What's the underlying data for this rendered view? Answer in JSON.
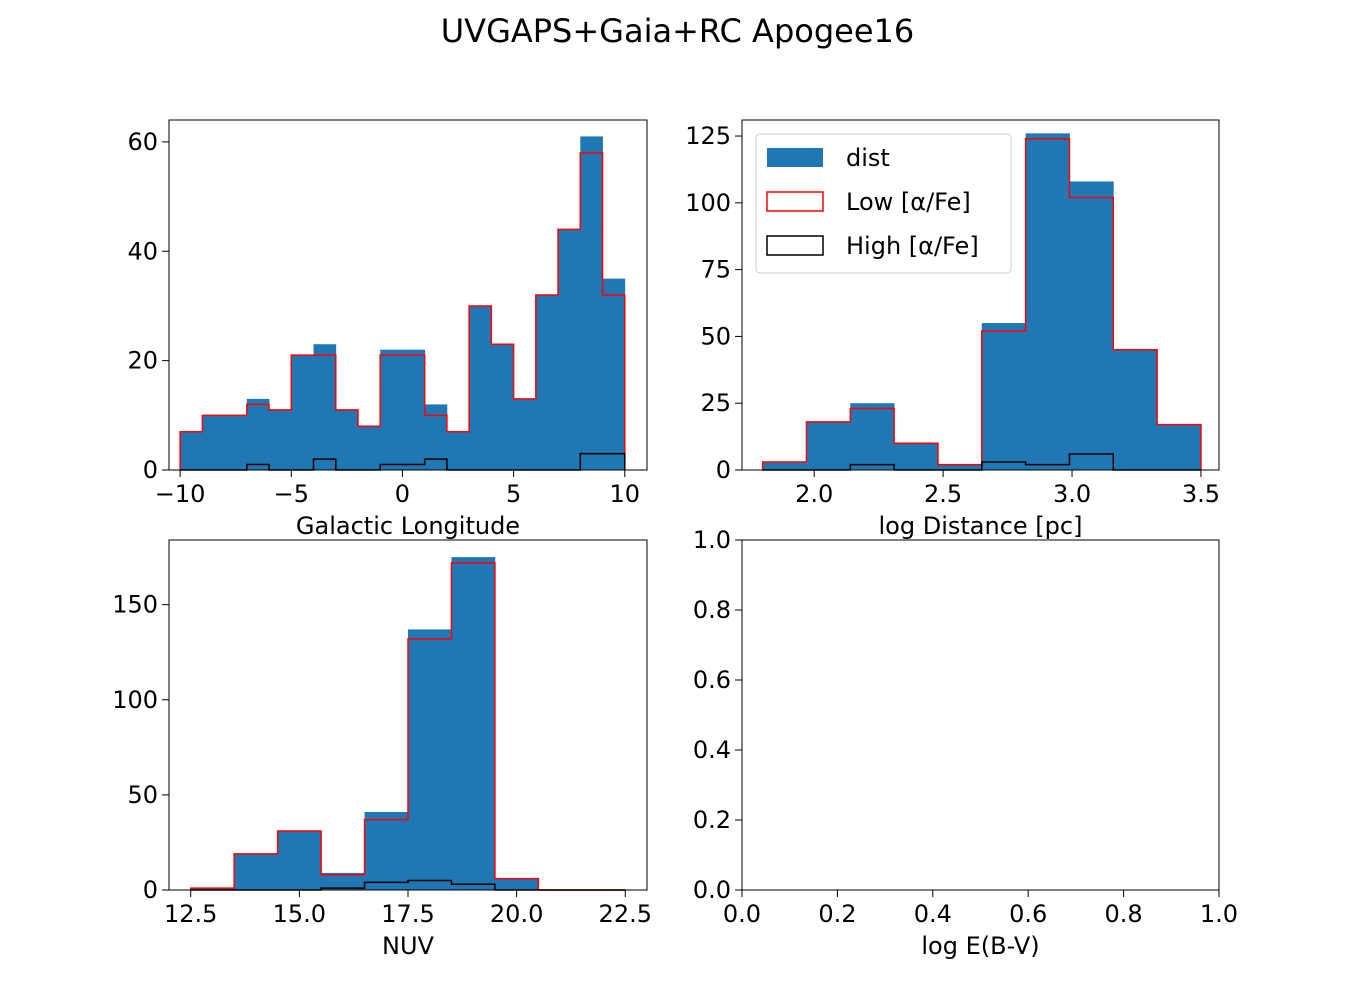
{
  "figure": {
    "title": "UVGAPS+Gaia+RC Apogee16"
  },
  "colors": {
    "dist": "#1f77b4",
    "low": "#ff0000",
    "high": "#000000"
  },
  "legend": {
    "placement": "upper-left of panel 2",
    "entries": [
      {
        "key": "dist",
        "label": "dist",
        "style": "filled"
      },
      {
        "key": "low",
        "label": "Low [α/Fe]",
        "style": "step"
      },
      {
        "key": "high",
        "label": "High [α/Fe]",
        "style": "step"
      }
    ]
  },
  "chart_data": [
    {
      "type": "histogram",
      "xlabel": "Galactic Longitude",
      "xlim": [
        -10.5,
        11
      ],
      "ylim": [
        0,
        64
      ],
      "xticks": [
        -10,
        -5,
        0,
        5,
        10
      ],
      "xtick_labels": [
        "−10",
        "−5",
        "0",
        "5",
        "10"
      ],
      "yticks": [
        0,
        20,
        40,
        60
      ],
      "ytick_labels": [
        "0",
        "20",
        "40",
        "60"
      ],
      "bin_edges": [
        -10,
        -9,
        -8,
        -7,
        -6,
        -5,
        -4,
        -3,
        -2,
        -1,
        0,
        1,
        2,
        3,
        4,
        5,
        6,
        7,
        8,
        9,
        10
      ],
      "series": [
        {
          "key": "dist",
          "values": [
            7,
            10,
            10,
            13,
            11,
            21,
            23,
            11,
            8,
            22,
            22,
            12,
            7,
            30,
            23,
            13,
            32,
            44,
            61,
            35
          ]
        },
        {
          "key": "low",
          "values": [
            7,
            10,
            10,
            12,
            11,
            21,
            21,
            11,
            8,
            21,
            21,
            10,
            7,
            30,
            23,
            13,
            32,
            44,
            58,
            32
          ]
        },
        {
          "key": "high",
          "values": [
            0,
            0,
            0,
            1,
            0,
            0,
            2,
            0,
            0,
            1,
            1,
            2,
            0,
            0,
            0,
            0,
            0,
            0,
            3,
            3
          ]
        }
      ]
    },
    {
      "type": "histogram",
      "xlabel": "log Distance [pc]",
      "xlim": [
        1.72,
        3.57
      ],
      "ylim": [
        0,
        131
      ],
      "xticks": [
        2.0,
        2.5,
        3.0,
        3.5
      ],
      "xtick_labels": [
        "2.0",
        "2.5",
        "3.0",
        "3.5"
      ],
      "yticks": [
        0,
        25,
        50,
        75,
        100,
        125
      ],
      "ytick_labels": [
        "0",
        "25",
        "50",
        "75",
        "100",
        "125"
      ],
      "bin_edges": [
        1.8,
        1.97,
        2.14,
        2.31,
        2.48,
        2.65,
        2.82,
        2.99,
        3.16,
        3.33,
        3.5
      ],
      "series": [
        {
          "key": "dist",
          "values": [
            3,
            18,
            25,
            10,
            2,
            55,
            126,
            108,
            45,
            17
          ]
        },
        {
          "key": "low",
          "values": [
            3,
            18,
            23,
            10,
            2,
            52,
            124,
            102,
            45,
            17
          ]
        },
        {
          "key": "high",
          "values": [
            0,
            0,
            2,
            0,
            0,
            3,
            2,
            6,
            0,
            0
          ]
        }
      ]
    },
    {
      "type": "histogram",
      "xlabel": "NUV",
      "xlim": [
        12,
        23
      ],
      "ylim": [
        0,
        184
      ],
      "xticks": [
        12.5,
        15.0,
        17.5,
        20.0,
        22.5
      ],
      "xtick_labels": [
        "12.5",
        "15.0",
        "17.5",
        "20.0",
        "22.5"
      ],
      "yticks": [
        0,
        50,
        100,
        150
      ],
      "ytick_labels": [
        "0",
        "50",
        "100",
        "150"
      ],
      "bin_edges": [
        12.5,
        13.5,
        14.5,
        15.5,
        16.5,
        17.5,
        18.5,
        19.5,
        20.5,
        21.5,
        22.5
      ],
      "series": [
        {
          "key": "dist",
          "values": [
            1,
            19,
            31,
            9,
            41,
            137,
            175,
            6,
            0,
            0
          ]
        },
        {
          "key": "low",
          "values": [
            1,
            19,
            31,
            8,
            37,
            132,
            172,
            6,
            0,
            0
          ]
        },
        {
          "key": "high",
          "values": [
            0,
            0,
            0,
            1,
            4,
            5,
            3,
            0,
            0,
            0
          ]
        }
      ]
    },
    {
      "type": "empty",
      "xlabel": "log E(B-V)",
      "xlim": [
        0,
        1
      ],
      "ylim": [
        0,
        1
      ],
      "xticks": [
        0,
        0.2,
        0.4,
        0.6,
        0.8,
        1.0
      ],
      "xtick_labels": [
        "0.0",
        "0.2",
        "0.4",
        "0.6",
        "0.8",
        "1.0"
      ],
      "yticks": [
        0,
        0.2,
        0.4,
        0.6,
        0.8,
        1.0
      ],
      "ytick_labels": [
        "0.0",
        "0.2",
        "0.4",
        "0.6",
        "0.8",
        "1.0"
      ],
      "bin_edges": [],
      "series": []
    }
  ]
}
